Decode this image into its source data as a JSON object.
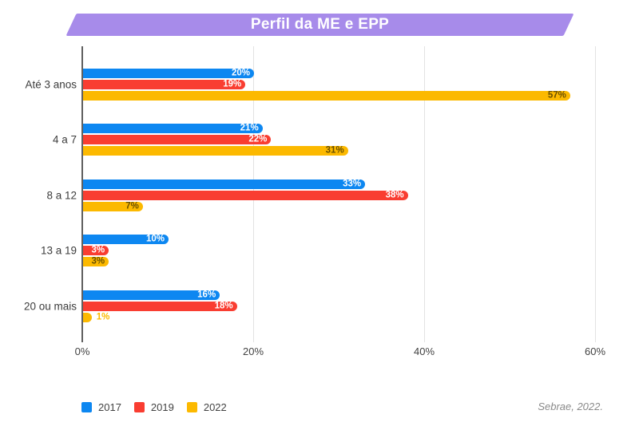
{
  "title": "Perfil da ME e EPP",
  "source": "Sebrae, 2022.",
  "colors": {
    "banner": "#a78bea",
    "axis_line": "#5f5f5f",
    "gridline": "#e2e2e2",
    "category_text": "#3c3c3c",
    "tick_text": "#424242",
    "legend_text": "#424242",
    "source_text": "#8a8a8a"
  },
  "chart_data": {
    "type": "bar",
    "orientation": "horizontal",
    "title": "Perfil da ME e EPP",
    "categories": [
      "Até 3 anos",
      "4 a 7",
      "8 a 12",
      "13 a 19",
      "20 ou mais"
    ],
    "series": [
      {
        "name": "2017",
        "color": "#0d87f1",
        "label_color": "#ffffff",
        "values": [
          20,
          21,
          33,
          10,
          16
        ]
      },
      {
        "name": "2019",
        "color": "#f93d31",
        "label_color": "#ffffff",
        "values": [
          19,
          22,
          38,
          3,
          18
        ]
      },
      {
        "name": "2022",
        "color": "#fcb900",
        "label_color": "#694f00",
        "values": [
          57,
          31,
          7,
          3,
          1
        ]
      }
    ],
    "value_suffix": "%",
    "x_ticks": [
      {
        "value": 0,
        "label": "0%"
      },
      {
        "value": 20,
        "label": "20%"
      },
      {
        "value": 40,
        "label": "40%"
      },
      {
        "value": 60,
        "label": "60%"
      }
    ],
    "xlim": [
      0,
      62
    ],
    "grid": true,
    "legend_position": "bottom-left"
  }
}
